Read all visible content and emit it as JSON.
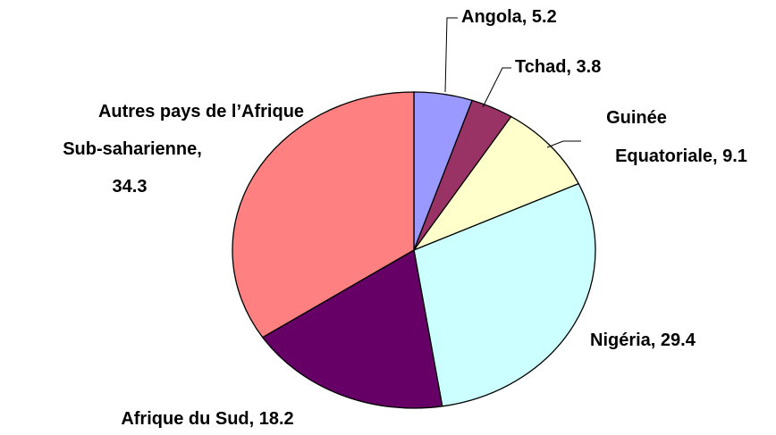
{
  "chart_data": {
    "type": "pie",
    "values": [
      5.2,
      3.8,
      9.1,
      29.4,
      18.2,
      34.3
    ],
    "value_labels": [
      [
        "Angola, 5.2"
      ],
      [
        "Tchad, 3.8"
      ],
      [
        "Guinée",
        "Equatoriale, 9.1"
      ],
      [
        "Nigéria, 29.4"
      ],
      [
        "Afrique du Sud, 18.2"
      ],
      [
        "Autres pays de l’Afrique",
        "Sub-saharienne,",
        "34.3"
      ]
    ],
    "colors": [
      "#9999ff",
      "#993366",
      "#ffffcc",
      "#ccffff",
      "#660066",
      "#ff8080"
    ]
  }
}
